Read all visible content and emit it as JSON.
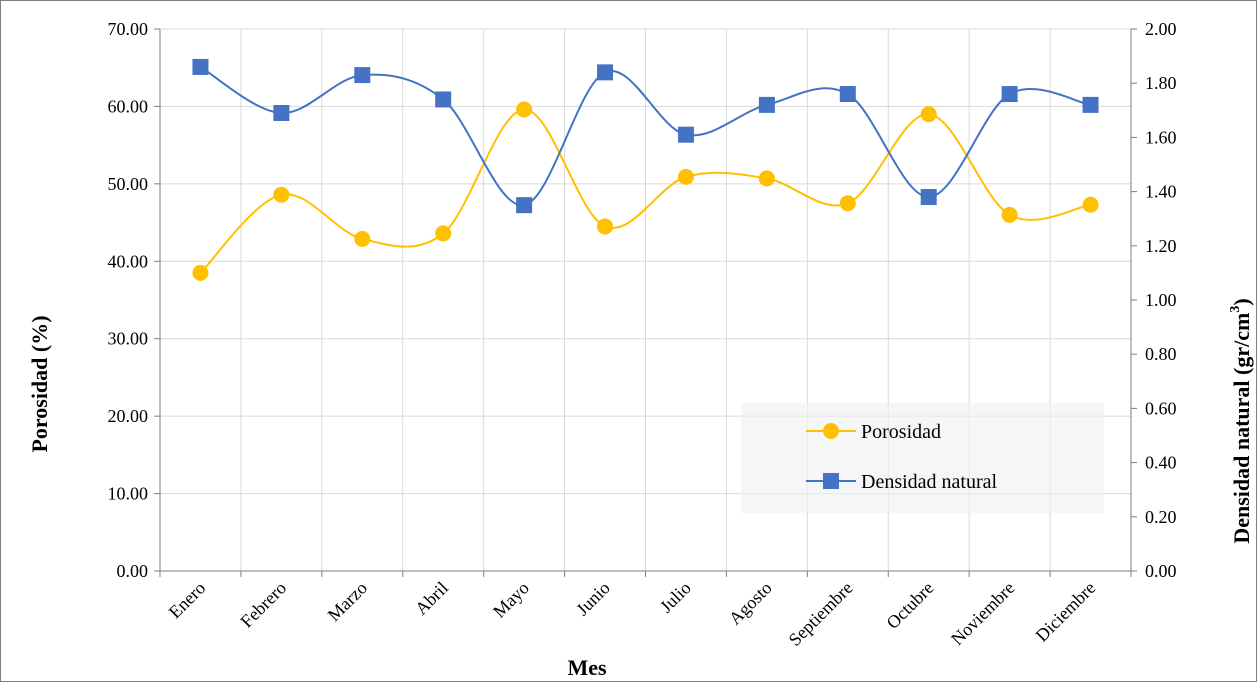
{
  "chart_data": {
    "type": "line",
    "categories": [
      "Enero",
      "Febrero",
      "Marzo",
      "Abril",
      "Mayo",
      "Junio",
      "Julio",
      "Agosto",
      "Septiembre",
      "Octubre",
      "Noviembre",
      "Diciembre"
    ],
    "series": [
      {
        "name": "Porosidad",
        "axis": "left",
        "color": "#ffc000",
        "marker": "circle",
        "values": [
          38.5,
          48.6,
          42.9,
          43.6,
          59.6,
          44.5,
          50.9,
          50.7,
          47.5,
          59.0,
          46.0,
          47.3
        ]
      },
      {
        "name": "Densidad natural",
        "axis": "right",
        "color": "#4472c4",
        "marker": "square",
        "values": [
          1.86,
          1.69,
          1.83,
          1.74,
          1.35,
          1.84,
          1.61,
          1.72,
          1.76,
          1.38,
          1.76,
          1.72
        ]
      }
    ],
    "xlabel": "Mes",
    "ylabel": "Porosidad (%)",
    "y2label": "Densidad natural  (gr/cm",
    "y2label_sup": "3",
    "y2label_end": ")",
    "ylim": [
      0,
      70
    ],
    "y2lim": [
      0,
      2
    ],
    "yticks": [
      "0.00",
      "10.00",
      "20.00",
      "30.00",
      "40.00",
      "50.00",
      "60.00",
      "70.00"
    ],
    "y2ticks": [
      "0.00",
      "0.20",
      "0.40",
      "0.60",
      "0.80",
      "1.00",
      "1.20",
      "1.40",
      "1.60",
      "1.80",
      "2.00"
    ],
    "grid": true,
    "legend_position": "bottom-right"
  }
}
